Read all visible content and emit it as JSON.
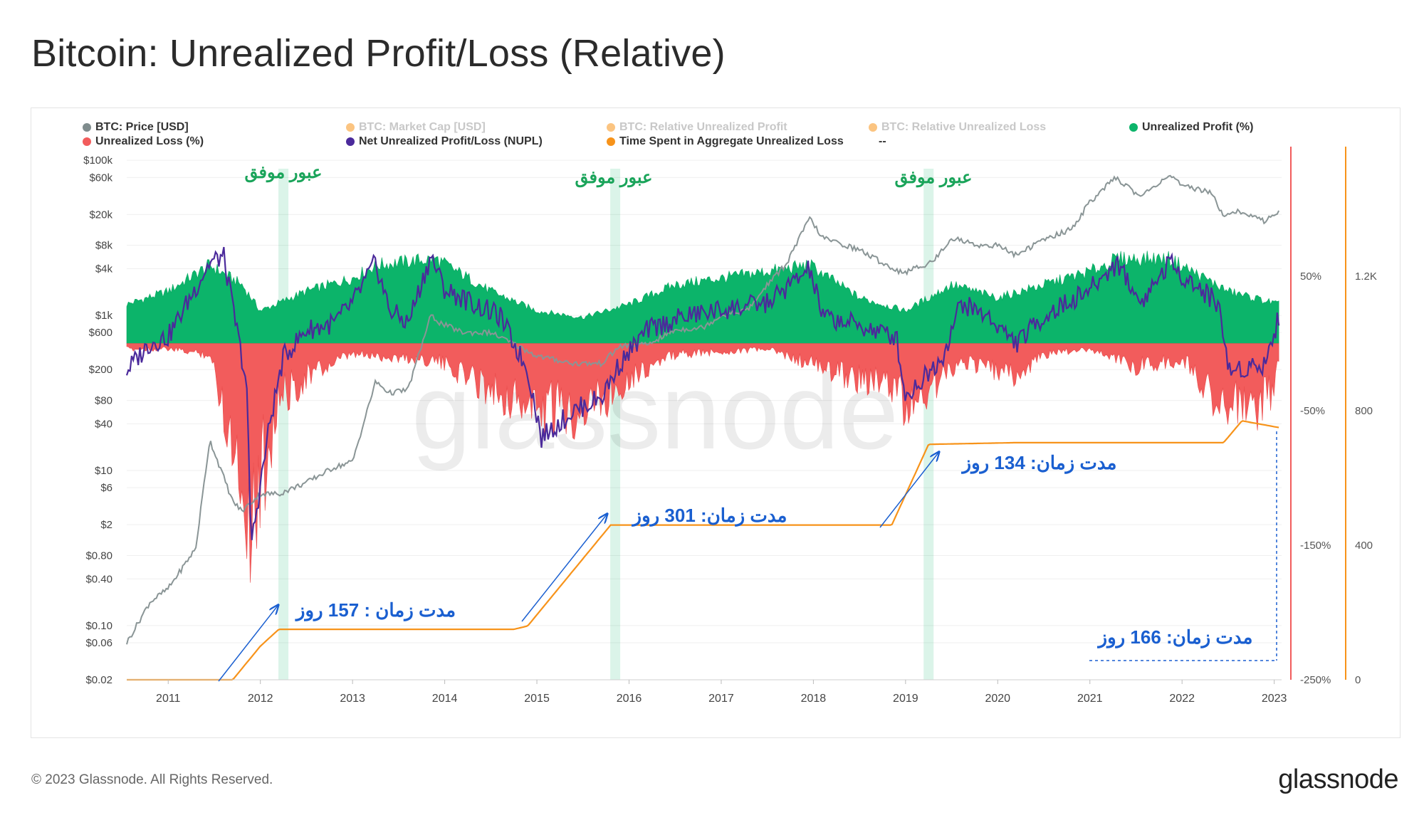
{
  "title": "Bitcoin: Unrealized Profit/Loss (Relative)",
  "legend": [
    {
      "label": "BTC: Price [USD]",
      "color": "#7f8c8d",
      "active": true
    },
    {
      "label": "BTC: Market Cap [USD]",
      "color": "#f7931a",
      "active": false
    },
    {
      "label": "BTC: Relative Unrealized Profit",
      "color": "#f7931a",
      "active": false
    },
    {
      "label": "BTC: Relative Unrealized Loss",
      "color": "#f7931a",
      "active": false
    },
    {
      "label": "Unrealized Profit (%)",
      "color": "#0cb46a",
      "active": true
    },
    {
      "label": "Unrealized Loss (%)",
      "color": "#f25c5c",
      "active": true
    },
    {
      "label": "Net Unrealized Profit/Loss (NUPL)",
      "color": "#4b2a9b",
      "active": true
    },
    {
      "label": "Time Spent in Aggregate Unrealized Loss",
      "color": "#f7931a",
      "active": true
    },
    {
      "label": "--",
      "color": "",
      "active": true
    }
  ],
  "watermark": "glassnode",
  "footer": "© 2023 Glassnode. All Rights Reserved.",
  "brand": "glassnode",
  "chart_data": {
    "type": "line",
    "x_ticks": [
      "2011",
      "2012",
      "2013",
      "2014",
      "2015",
      "2016",
      "2017",
      "2018",
      "2019",
      "2020",
      "2021",
      "2022",
      "2023"
    ],
    "y_left_ticks": [
      "$100k",
      "$60k",
      "$20k",
      "$8k",
      "$4k",
      "$1k",
      "$600",
      "$200",
      "$80",
      "$40",
      "$10",
      "$6",
      "$2",
      "$0.80",
      "$0.40",
      "$0.10",
      "$0.06",
      "$0.02"
    ],
    "y_right_pct_ticks": [
      "50%",
      "-50%",
      "-150%",
      "-250%"
    ],
    "y_right_days_ticks": [
      "1.2K",
      "800",
      "400",
      "0"
    ],
    "y_right_pct_range": [
      -250,
      50
    ],
    "y_right_days_range": [
      0,
      1200
    ],
    "price_usd": {
      "x": [
        2010.55,
        2010.8,
        2011.0,
        2011.3,
        2011.45,
        2011.7,
        2011.8,
        2012.0,
        2012.2,
        2012.5,
        2012.8,
        2013.0,
        2013.25,
        2013.4,
        2013.6,
        2013.85,
        2013.95,
        2014.2,
        2014.5,
        2014.8,
        2015.0,
        2015.4,
        2015.7,
        2015.9,
        2016.2,
        2016.5,
        2016.8,
        2017.0,
        2017.3,
        2017.5,
        2017.7,
        2017.96,
        2018.1,
        2018.5,
        2018.9,
        2019.0,
        2019.3,
        2019.5,
        2019.8,
        2020.0,
        2020.2,
        2020.5,
        2020.8,
        2021.0,
        2021.28,
        2021.55,
        2021.86,
        2022.0,
        2022.3,
        2022.45,
        2022.6,
        2022.9,
        2023.05
      ],
      "y": [
        0.06,
        0.2,
        0.3,
        1,
        25,
        4,
        3,
        5,
        5,
        7,
        11,
        13,
        140,
        100,
        110,
        1000,
        800,
        600,
        600,
        400,
        300,
        240,
        240,
        400,
        420,
        650,
        700,
        1000,
        1200,
        2500,
        4500,
        18000,
        10000,
        7000,
        3800,
        3600,
        5000,
        10000,
        8000,
        8000,
        6000,
        9500,
        13000,
        29000,
        60000,
        34000,
        65000,
        46000,
        40000,
        20000,
        22000,
        16500,
        22000
      ]
    },
    "nupl": {
      "x": [
        2010.55,
        2010.8,
        2011.0,
        2011.45,
        2011.6,
        2011.85,
        2011.9,
        2012.1,
        2012.25,
        2012.5,
        2012.8,
        2013.0,
        2013.25,
        2013.4,
        2013.6,
        2013.85,
        2014.0,
        2014.3,
        2014.6,
        2014.9,
        2015.05,
        2015.4,
        2015.7,
        2015.9,
        2016.2,
        2016.6,
        2017.0,
        2017.5,
        2017.96,
        2018.1,
        2018.4,
        2018.9,
        2019.0,
        2019.4,
        2019.6,
        2019.9,
        2020.2,
        2020.5,
        2021.0,
        2021.3,
        2021.55,
        2021.86,
        2022.1,
        2022.4,
        2022.5,
        2022.9,
        2023.05
      ],
      "y": [
        -20,
        0,
        5,
        60,
        65,
        -30,
        -150,
        -60,
        -10,
        10,
        15,
        30,
        60,
        25,
        15,
        65,
        40,
        30,
        20,
        -20,
        -70,
        -50,
        -40,
        -15,
        10,
        20,
        25,
        30,
        55,
        20,
        15,
        5,
        -40,
        -10,
        30,
        20,
        0,
        20,
        40,
        60,
        30,
        60,
        45,
        30,
        -20,
        -15,
        20
      ]
    },
    "unrealized_profit_pct": {
      "x": [
        2010.55,
        2011.0,
        2011.45,
        2011.8,
        2012.0,
        2012.5,
        2013.0,
        2013.25,
        2013.9,
        2014.5,
        2015.0,
        2015.5,
        2016.0,
        2016.5,
        2017.0,
        2017.96,
        2018.5,
        2019.0,
        2019.5,
        2020.0,
        2020.5,
        2021.0,
        2021.3,
        2021.86,
        2022.5,
        2023.05
      ],
      "y": [
        30,
        40,
        60,
        45,
        25,
        40,
        50,
        60,
        65,
        40,
        25,
        20,
        30,
        45,
        50,
        60,
        35,
        25,
        45,
        35,
        45,
        55,
        65,
        65,
        40,
        30
      ]
    },
    "unrealized_loss_pct": {
      "x": [
        2010.55,
        2011.0,
        2011.45,
        2011.8,
        2011.9,
        2012.2,
        2012.5,
        2013.0,
        2013.9,
        2014.5,
        2015.0,
        2015.4,
        2015.7,
        2016.0,
        2016.5,
        2017.5,
        2018.2,
        2018.9,
        2019.0,
        2019.4,
        2019.6,
        2020.2,
        2020.5,
        2021.0,
        2021.5,
        2022.0,
        2022.5,
        2022.9,
        2023.05
      ],
      "y": [
        -5,
        -5,
        -10,
        -120,
        -160,
        -50,
        -30,
        -10,
        -15,
        -40,
        -60,
        -60,
        -50,
        -30,
        -10,
        -5,
        -25,
        -40,
        -60,
        -30,
        -15,
        -30,
        -10,
        -5,
        -20,
        -15,
        -60,
        -55,
        -25
      ]
    },
    "time_in_loss_days": {
      "x": [
        2010.55,
        2011.7,
        2012.0,
        2012.2,
        2014.75,
        2014.9,
        2015.8,
        2018.85,
        2019.25,
        2020.2,
        2022.45,
        2022.65,
        2023.05
      ],
      "y": [
        0,
        0,
        100,
        150,
        150,
        160,
        460,
        460,
        700,
        705,
        705,
        770,
        750
      ]
    },
    "highlight_bands": [
      2012.25,
      2015.85,
      2019.25
    ],
    "annotations": {
      "crossings": [
        "عبور موفق",
        "عبور موفق",
        "عبور موفق"
      ],
      "durations": [
        "مدت زمان : 157 روز",
        "مدت زمان: 301 روز",
        "مدت زمان: 134 روز",
        "مدت زمان: 166 روز"
      ]
    }
  }
}
